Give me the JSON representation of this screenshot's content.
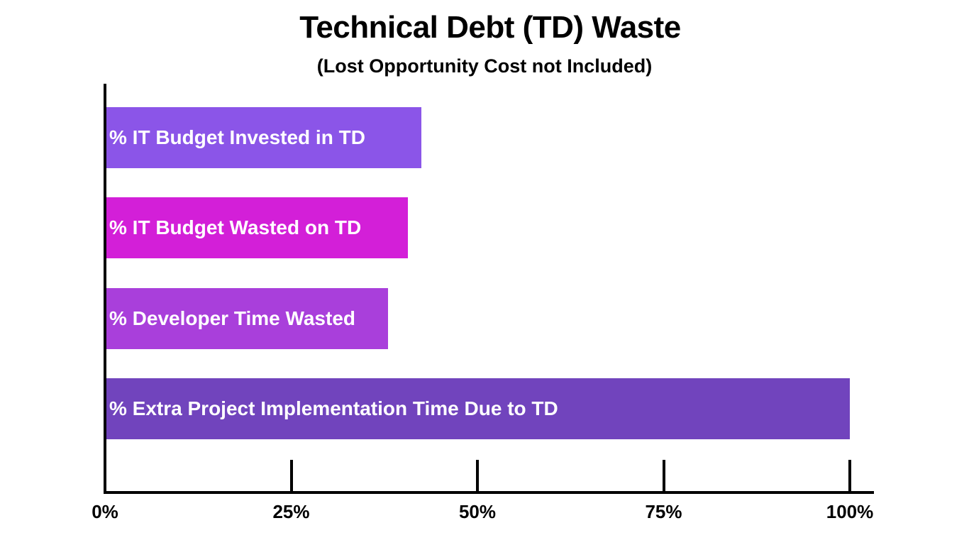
{
  "chart_data": {
    "type": "bar",
    "orientation": "horizontal",
    "title": "Technical Debt (TD) Waste",
    "subtitle": "(Lost Opportunity Cost not Included)",
    "xlabel": "",
    "ylabel": "",
    "xlim": [
      0,
      100
    ],
    "grid": false,
    "legend": null,
    "x_ticks": [
      "0%",
      "25%",
      "50%",
      "75%",
      "100%"
    ],
    "categories": [
      "% IT Budget Invested in TD",
      "% IT Budget Wasted on TD",
      "% Developer Time Wasted",
      "% Extra Project Implementation Time Due to TD"
    ],
    "values": [
      42.5,
      40.7,
      38,
      100
    ],
    "colors": [
      "#8b55e8",
      "#d31fd8",
      "#a93fdb",
      "#7144bd"
    ]
  },
  "header": {
    "title": "Technical Debt (TD) Waste",
    "subtitle": "(Lost Opportunity Cost not Included)"
  },
  "axis": {
    "ticks": [
      {
        "label": "0%",
        "value": 0
      },
      {
        "label": "25%",
        "value": 25
      },
      {
        "label": "50%",
        "value": 50
      },
      {
        "label": "75%",
        "value": 75
      },
      {
        "label": "100%",
        "value": 100
      }
    ]
  },
  "bars": [
    {
      "label": "% IT Budget Invested in TD",
      "value": 42.5,
      "color": "#8b55e8"
    },
    {
      "label": "% IT Budget Wasted on TD",
      "value": 40.7,
      "color": "#d31fd8"
    },
    {
      "label": "% Developer Time Wasted",
      "value": 38,
      "color": "#a93fdb"
    },
    {
      "label": "% Extra Project Implementation Time Due to TD",
      "value": 100,
      "color": "#7144bd"
    }
  ]
}
